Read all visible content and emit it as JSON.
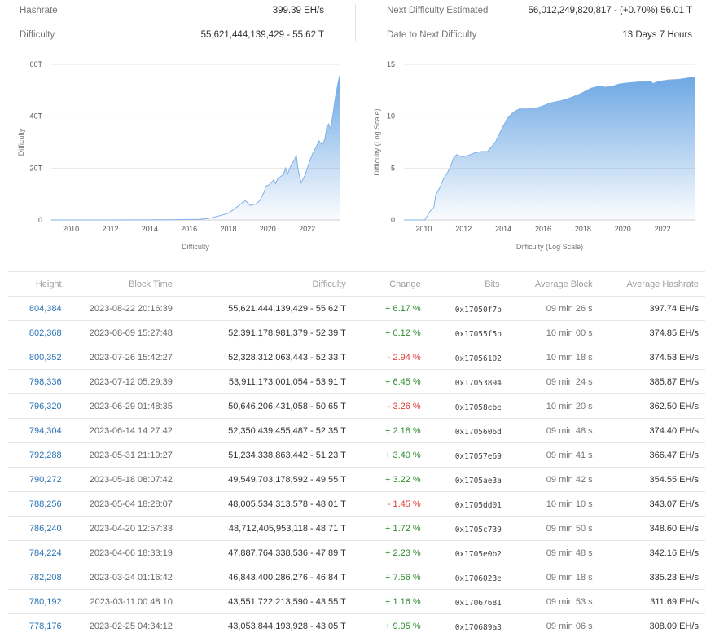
{
  "stats": {
    "hashrate": {
      "label": "Hashrate",
      "value": "399.39 EH/s"
    },
    "difficulty": {
      "label": "Difficulty",
      "value": "55,621,444,139,429 - 55.62 T"
    },
    "next_difficulty": {
      "label": "Next Difficulty Estimated",
      "value": "56,012,249,820,817 - (+0.70%) 56.01 T"
    },
    "date_to_next": {
      "label": "Date to Next Difficulty",
      "value": "13 Days 7 Hours"
    }
  },
  "colors": {
    "link": "#2a73b5",
    "positive": "#2e8b2e",
    "negative": "#e53935",
    "area_top": "#6ea8e4",
    "line": "#7fb0e6",
    "grid": "#e6e6e6"
  },
  "chart_data": [
    {
      "type": "area",
      "title": "Difficulty",
      "xlabel": "Difficulty",
      "ylabel": "Difficulty",
      "x_ticks": [
        "2010",
        "2012",
        "2014",
        "2016",
        "2018",
        "2020",
        "2022"
      ],
      "y_ticks": [
        "0",
        "20T",
        "40T",
        "60T"
      ],
      "ylim": [
        0,
        60
      ],
      "xlim": [
        2009.0,
        2023.65
      ],
      "grid": true,
      "legend": null,
      "unit": "T",
      "x": [
        2009.0,
        2012.0,
        2015.0,
        2016.5,
        2017.0,
        2017.5,
        2018.0,
        2018.3,
        2018.6,
        2018.85,
        2019.0,
        2019.1,
        2019.4,
        2019.6,
        2019.8,
        2019.9,
        2020.1,
        2020.3,
        2020.4,
        2020.5,
        2020.6,
        2020.8,
        2020.9,
        2021.0,
        2021.2,
        2021.35,
        2021.45,
        2021.55,
        2021.7,
        2021.9,
        2022.1,
        2022.3,
        2022.45,
        2022.6,
        2022.75,
        2022.9,
        2023.0,
        2023.1,
        2023.2,
        2023.35,
        2023.45,
        2023.55,
        2023.65
      ],
      "values": [
        0.0,
        0.0,
        0.05,
        0.25,
        0.6,
        1.5,
        2.6,
        4.2,
        6.0,
        7.4,
        6.5,
        5.6,
        6.2,
        7.5,
        10.5,
        13.0,
        13.7,
        15.5,
        14.0,
        15.8,
        16.5,
        17.5,
        20.0,
        17.7,
        21.5,
        23.0,
        25.0,
        19.0,
        14.3,
        17.5,
        22.0,
        26.0,
        28.0,
        30.5,
        29.0,
        31.0,
        36.0,
        37.0,
        35.0,
        43.0,
        48.0,
        52.0,
        55.6
      ]
    },
    {
      "type": "area",
      "title": "Difficulty (Log Scale)",
      "xlabel": "Difficulty (Log Scale)",
      "ylabel": "Difficulty (Log Scale)",
      "x_ticks": [
        "2010",
        "2012",
        "2014",
        "2016",
        "2018",
        "2020",
        "2022"
      ],
      "y_ticks": [
        "0",
        "5",
        "10",
        "15"
      ],
      "ylim": [
        0,
        15
      ],
      "xlim": [
        2009.0,
        2023.65
      ],
      "grid": true,
      "legend": null,
      "x": [
        2009.0,
        2010.05,
        2010.3,
        2010.5,
        2010.6,
        2010.8,
        2011.0,
        2011.2,
        2011.35,
        2011.5,
        2011.65,
        2011.9,
        2012.2,
        2012.6,
        2012.9,
        2013.2,
        2013.6,
        2013.9,
        2014.2,
        2014.5,
        2014.8,
        2015.2,
        2015.7,
        2016.0,
        2016.4,
        2016.9,
        2017.4,
        2017.9,
        2018.4,
        2018.8,
        2019.1,
        2019.5,
        2019.8,
        2020.2,
        2020.8,
        2021.4,
        2021.5,
        2021.8,
        2022.3,
        2022.8,
        2023.3,
        2023.65
      ],
      "values": [
        0.0,
        0.0,
        0.8,
        1.2,
        2.4,
        3.1,
        4.0,
        4.6,
        5.2,
        6.0,
        6.3,
        6.1,
        6.2,
        6.5,
        6.6,
        6.6,
        7.5,
        8.7,
        9.8,
        10.4,
        10.7,
        10.7,
        10.8,
        11.0,
        11.3,
        11.5,
        11.8,
        12.2,
        12.7,
        12.9,
        12.8,
        12.9,
        13.1,
        13.2,
        13.3,
        13.4,
        13.15,
        13.35,
        13.5,
        13.55,
        13.7,
        13.75
      ]
    }
  ],
  "table": {
    "headers": [
      "Height",
      "Block Time",
      "Difficulty",
      "Change",
      "Bits",
      "Average Block",
      "Average Hashrate"
    ],
    "rows": [
      {
        "height": "804,384",
        "time": "2023-08-22 20:16:39",
        "difficulty": "55,621,444,139,429 - 55.62 T",
        "change": "+ 6.17 %",
        "dir": "up",
        "bits": "0x17050f7b",
        "avg_block": "09 min 26 s",
        "avg_hashrate": "397.74 EH/s"
      },
      {
        "height": "802,368",
        "time": "2023-08-09 15:27:48",
        "difficulty": "52,391,178,981,379 - 52.39 T",
        "change": "+ 0.12 %",
        "dir": "up",
        "bits": "0x17055f5b",
        "avg_block": "10 min 00 s",
        "avg_hashrate": "374.85 EH/s"
      },
      {
        "height": "800,352",
        "time": "2023-07-26 15:42:27",
        "difficulty": "52,328,312,063,443 - 52.33 T",
        "change": "- 2.94 %",
        "dir": "down",
        "bits": "0x17056102",
        "avg_block": "10 min 18 s",
        "avg_hashrate": "374.53 EH/s"
      },
      {
        "height": "798,336",
        "time": "2023-07-12 05:29:39",
        "difficulty": "53,911,173,001,054 - 53.91 T",
        "change": "+ 6.45 %",
        "dir": "up",
        "bits": "0x17053894",
        "avg_block": "09 min 24 s",
        "avg_hashrate": "385.87 EH/s"
      },
      {
        "height": "796,320",
        "time": "2023-06-29 01:48:35",
        "difficulty": "50,646,206,431,058 - 50.65 T",
        "change": "- 3.26 %",
        "dir": "down",
        "bits": "0x17058ebe",
        "avg_block": "10 min 20 s",
        "avg_hashrate": "362.50 EH/s"
      },
      {
        "height": "794,304",
        "time": "2023-06-14 14:27:42",
        "difficulty": "52,350,439,455,487 - 52.35 T",
        "change": "+ 2.18 %",
        "dir": "up",
        "bits": "0x1705606d",
        "avg_block": "09 min 48 s",
        "avg_hashrate": "374.40 EH/s"
      },
      {
        "height": "792,288",
        "time": "2023-05-31 21:19:27",
        "difficulty": "51,234,338,863,442 - 51.23 T",
        "change": "+ 3.40 %",
        "dir": "up",
        "bits": "0x17057e69",
        "avg_block": "09 min 41 s",
        "avg_hashrate": "366.47 EH/s"
      },
      {
        "height": "790,272",
        "time": "2023-05-18 08:07:42",
        "difficulty": "49,549,703,178,592 - 49.55 T",
        "change": "+ 3.22 %",
        "dir": "up",
        "bits": "0x1705ae3a",
        "avg_block": "09 min 42 s",
        "avg_hashrate": "354.55 EH/s"
      },
      {
        "height": "788,256",
        "time": "2023-05-04 18:28:07",
        "difficulty": "48,005,534,313,578 - 48.01 T",
        "change": "- 1.45 %",
        "dir": "down",
        "bits": "0x1705dd01",
        "avg_block": "10 min 10 s",
        "avg_hashrate": "343.07 EH/s"
      },
      {
        "height": "786,240",
        "time": "2023-04-20 12:57:33",
        "difficulty": "48,712,405,953,118 - 48.71 T",
        "change": "+ 1.72 %",
        "dir": "up",
        "bits": "0x1705c739",
        "avg_block": "09 min 50 s",
        "avg_hashrate": "348.60 EH/s"
      },
      {
        "height": "784,224",
        "time": "2023-04-06 18:33:19",
        "difficulty": "47,887,764,338,536 - 47.89 T",
        "change": "+ 2.23 %",
        "dir": "up",
        "bits": "0x1705e0b2",
        "avg_block": "09 min 48 s",
        "avg_hashrate": "342.16 EH/s"
      },
      {
        "height": "782,208",
        "time": "2023-03-24 01:16:42",
        "difficulty": "46,843,400,286,276 - 46.84 T",
        "change": "+ 7.56 %",
        "dir": "up",
        "bits": "0x1706023e",
        "avg_block": "09 min 18 s",
        "avg_hashrate": "335.23 EH/s"
      },
      {
        "height": "780,192",
        "time": "2023-03-11 00:48:10",
        "difficulty": "43,551,722,213,590 - 43.55 T",
        "change": "+ 1.16 %",
        "dir": "up",
        "bits": "0x17067681",
        "avg_block": "09 min 53 s",
        "avg_hashrate": "311.69 EH/s"
      },
      {
        "height": "778,176",
        "time": "2023-02-25 04:34:12",
        "difficulty": "43,053,844,193,928 - 43.05 T",
        "change": "+ 9.95 %",
        "dir": "up",
        "bits": "0x170689a3",
        "avg_block": "09 min 06 s",
        "avg_hashrate": "308.09 EH/s"
      }
    ]
  }
}
